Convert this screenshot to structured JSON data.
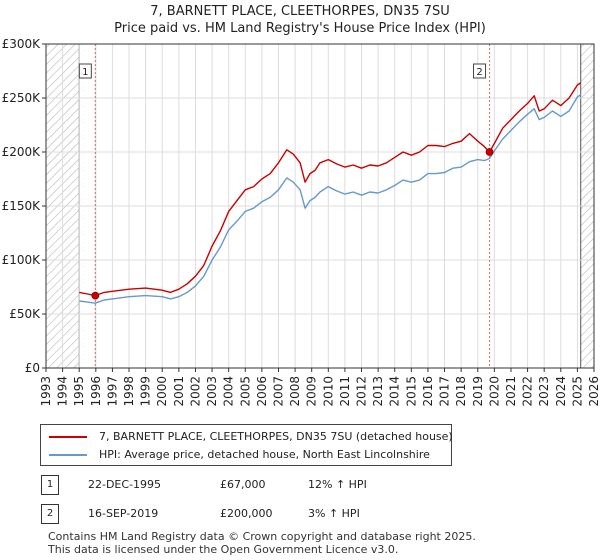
{
  "title_line1": "7, BARNETT PLACE, CLEETHORPES, DN35 7SU",
  "title_line2": "Price paid vs. HM Land Registry's House Price Index (HPI)",
  "legend": {
    "property": {
      "label": "7, BARNETT PLACE, CLEETHORPES, DN35 7SU (detached house)",
      "color": "#cc0000"
    },
    "hpi": {
      "label": "HPI: Average price, detached house, North East Lincolnshire",
      "color": "#6699cc"
    }
  },
  "sales": [
    {
      "num": "1",
      "date": "22-DEC-1995",
      "price": "£67,000",
      "hpi": "12% ↑ HPI"
    },
    {
      "num": "2",
      "date": "16-SEP-2019",
      "price": "£200,000",
      "hpi": "3% ↑ HPI"
    }
  ],
  "footer_line1": "Contains HM Land Registry data © Crown copyright and database right 2025.",
  "footer_line2": "This data is licensed under the Open Government Licence v3.0.",
  "chart_data": {
    "type": "line",
    "title": "Price paid vs. HM Land Registry's House Price Index (HPI)",
    "xlabel": "",
    "ylabel": "",
    "xlim": [
      1993,
      2026
    ],
    "ylim": [
      0,
      300000
    ],
    "x_ticks": [
      "1993",
      "1994",
      "1995",
      "1996",
      "1997",
      "1998",
      "1999",
      "2000",
      "2001",
      "2002",
      "2003",
      "2004",
      "2005",
      "2006",
      "2007",
      "2008",
      "2009",
      "2010",
      "2011",
      "2012",
      "2013",
      "2014",
      "2015",
      "2016",
      "2017",
      "2018",
      "2019",
      "2020",
      "2021",
      "2022",
      "2023",
      "2024",
      "2025",
      "2026"
    ],
    "y_ticks": [
      {
        "value": 0,
        "label": "£0"
      },
      {
        "value": 50000,
        "label": "£50K"
      },
      {
        "value": 100000,
        "label": "£100K"
      },
      {
        "value": 150000,
        "label": "£150K"
      },
      {
        "value": 200000,
        "label": "£200K"
      },
      {
        "value": 250000,
        "label": "£250K"
      },
      {
        "value": 300000,
        "label": "£300K"
      }
    ],
    "grid": true,
    "hatched_ranges": [
      [
        1993,
        1995.0
      ],
      [
        2025.2,
        2026
      ]
    ],
    "series": [
      {
        "name": "7, BARNETT PLACE, CLEETHORPES, DN35 7SU (detached house)",
        "color": "#cc0000",
        "x": [
          1995.0,
          1995.5,
          1995.97,
          1996.5,
          1997,
          1998,
          1999,
          2000,
          2000.5,
          2001,
          2001.5,
          2002,
          2002.5,
          2003,
          2003.5,
          2004,
          2004.5,
          2005,
          2005.5,
          2006,
          2006.5,
          2007,
          2007.5,
          2007.9,
          2008.3,
          2008.6,
          2008.9,
          2009.2,
          2009.5,
          2010,
          2010.5,
          2011,
          2011.5,
          2012,
          2012.5,
          2013,
          2013.5,
          2014,
          2014.5,
          2015,
          2015.5,
          2016,
          2016.5,
          2017,
          2017.5,
          2018,
          2018.5,
          2019,
          2019.4,
          2019.71,
          2020,
          2020.5,
          2021,
          2021.5,
          2022,
          2022.4,
          2022.7,
          2023,
          2023.5,
          2024,
          2024.5,
          2025,
          2025.2
        ],
        "y": [
          70000,
          68500,
          67000,
          70000,
          71000,
          73000,
          74000,
          72000,
          70000,
          73000,
          78000,
          85000,
          95000,
          113000,
          127000,
          145000,
          155000,
          165000,
          168000,
          175000,
          180000,
          190000,
          202000,
          198000,
          190000,
          172000,
          180000,
          183000,
          190000,
          193000,
          189000,
          186000,
          188000,
          185000,
          188000,
          187000,
          190000,
          195000,
          200000,
          197000,
          200000,
          206000,
          206000,
          205000,
          208000,
          210000,
          217000,
          210000,
          205000,
          200000,
          208000,
          222000,
          230000,
          238000,
          245000,
          252000,
          238000,
          240000,
          248000,
          243000,
          250000,
          262000,
          264000
        ]
      },
      {
        "name": "HPI: Average price, detached house, North East Lincolnshire",
        "color": "#6699cc",
        "x": [
          1995.0,
          1995.5,
          1995.97,
          1996.5,
          1997,
          1998,
          1999,
          2000,
          2000.5,
          2001,
          2001.5,
          2002,
          2002.5,
          2003,
          2003.5,
          2004,
          2004.5,
          2005,
          2005.5,
          2006,
          2006.5,
          2007,
          2007.5,
          2007.9,
          2008.3,
          2008.6,
          2008.9,
          2009.2,
          2009.5,
          2010,
          2010.5,
          2011,
          2011.5,
          2012,
          2012.5,
          2013,
          2013.5,
          2014,
          2014.5,
          2015,
          2015.5,
          2016,
          2016.5,
          2017,
          2017.5,
          2018,
          2018.5,
          2019,
          2019.4,
          2019.71,
          2020,
          2020.5,
          2021,
          2021.5,
          2022,
          2022.4,
          2022.7,
          2023,
          2023.5,
          2024,
          2024.5,
          2025,
          2025.2
        ],
        "y": [
          62000,
          61000,
          60000,
          63000,
          64000,
          66000,
          67000,
          66000,
          64000,
          66000,
          70000,
          76000,
          85000,
          100000,
          112000,
          128000,
          136000,
          145000,
          148000,
          154000,
          158000,
          165000,
          176000,
          172000,
          165000,
          148000,
          155000,
          158000,
          163000,
          168000,
          164000,
          161000,
          163000,
          160000,
          163000,
          162000,
          165000,
          169000,
          174000,
          172000,
          174000,
          180000,
          180000,
          181000,
          185000,
          186000,
          191000,
          193000,
          192000,
          194000,
          201000,
          212000,
          220000,
          228000,
          235000,
          240000,
          230000,
          232000,
          238000,
          233000,
          238000,
          251000,
          253000
        ]
      }
    ],
    "markers": [
      {
        "label": "1",
        "x": 1995.97,
        "y": 67000
      },
      {
        "label": "2",
        "x": 2019.71,
        "y": 200000
      }
    ]
  }
}
